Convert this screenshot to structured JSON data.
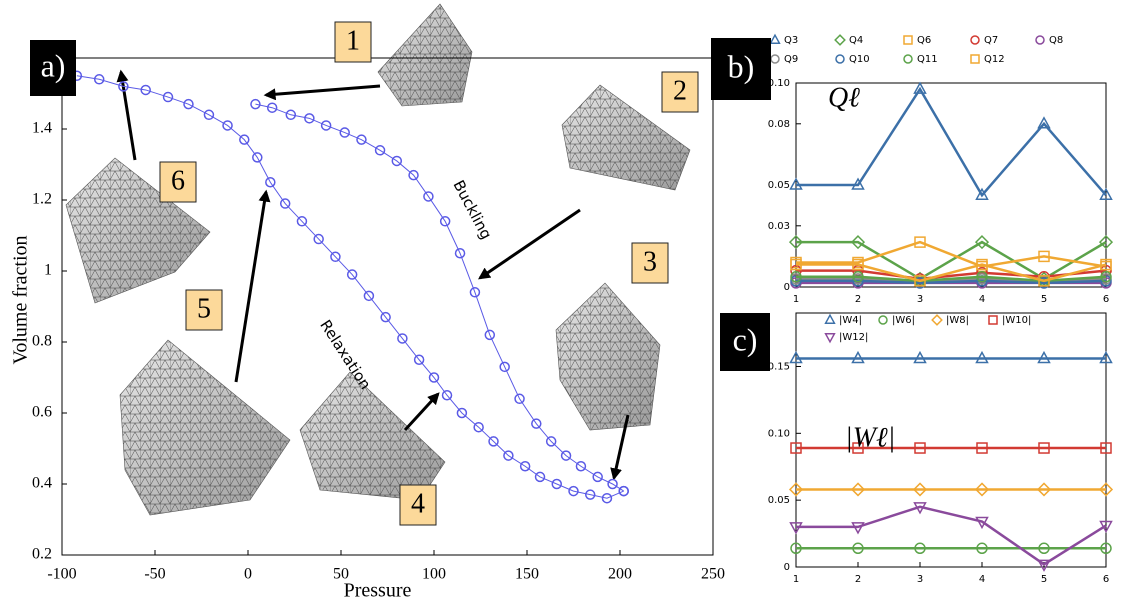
{
  "chart_data": [
    {
      "type": "line",
      "panel_label": "a)",
      "x_label": "Pressure",
      "y_label": "Volume fraction",
      "xlim": [
        -100,
        250
      ],
      "xticks": [
        -100,
        -50,
        0,
        50,
        100,
        150,
        200,
        250
      ],
      "ylim": [
        0.2,
        1.6
      ],
      "yticks": [
        0.2,
        0.4,
        0.6,
        0.8,
        1,
        1.2,
        1.4
      ],
      "annotations": [
        "1",
        "2",
        "3",
        "4",
        "5",
        "6",
        "Buckling",
        "Relaxation"
      ],
      "series": [
        {
          "color": "#5a5ae6",
          "marker": "circle",
          "x": [
            4,
            13,
            23,
            33,
            42,
            52,
            61,
            71,
            80,
            89,
            97,
            106,
            114,
            122,
            130,
            138,
            146,
            155,
            163,
            171,
            179,
            188,
            196,
            202
          ],
          "values": [
            1.47,
            1.46,
            1.44,
            1.43,
            1.41,
            1.39,
            1.37,
            1.34,
            1.31,
            1.27,
            1.21,
            1.14,
            1.05,
            0.94,
            0.82,
            0.73,
            0.64,
            0.57,
            0.52,
            0.48,
            0.45,
            0.42,
            0.4,
            0.38
          ]
        },
        {
          "color": "#5a5ae6",
          "marker": "circle",
          "x": [
            -92,
            -80,
            -67,
            -55,
            -43,
            -32,
            -21,
            -11,
            -2,
            5,
            12,
            20,
            29,
            38,
            47,
            56,
            65,
            74,
            83,
            92,
            100,
            107,
            115,
            124,
            132,
            140,
            149,
            157,
            166,
            175,
            184,
            193,
            202
          ],
          "values": [
            1.55,
            1.54,
            1.52,
            1.51,
            1.49,
            1.47,
            1.44,
            1.41,
            1.37,
            1.32,
            1.25,
            1.19,
            1.14,
            1.09,
            1.04,
            0.99,
            0.93,
            0.87,
            0.81,
            0.75,
            0.7,
            0.65,
            0.6,
            0.56,
            0.52,
            0.48,
            0.45,
            0.42,
            0.4,
            0.38,
            0.37,
            0.36,
            0.38
          ]
        }
      ]
    },
    {
      "type": "line",
      "panel_label": "b)",
      "y_label": "Qℓ",
      "x": [
        1,
        2,
        3,
        4,
        5,
        6
      ],
      "xlim": [
        1,
        6
      ],
      "xticks": [
        1,
        2,
        3,
        4,
        5,
        6
      ],
      "ylim": [
        0,
        0.1
      ],
      "yticks": [
        0,
        0.03,
        0.05,
        0.08,
        {
          "value": 0.1,
          "label": "0.10"
        }
      ],
      "series": [
        {
          "name": "Q3",
          "color": "#3c70a8",
          "marker": "triangle",
          "values": [
            0.05,
            0.05,
            0.097,
            0.045,
            0.08,
            0.045
          ]
        },
        {
          "name": "Q4",
          "color": "#5ca34a",
          "marker": "diamond",
          "values": [
            0.022,
            0.022,
            0.004,
            0.022,
            0.004,
            0.022
          ]
        },
        {
          "name": "Q6",
          "color": "#f0a832",
          "marker": "square",
          "values": [
            0.012,
            0.012,
            0.022,
            0.01,
            0.015,
            0.01
          ]
        },
        {
          "name": "Q7",
          "color": "#d23a32",
          "marker": "circle",
          "values": [
            0.008,
            0.008,
            0.004,
            0.007,
            0.005,
            0.008
          ]
        },
        {
          "name": "Q8",
          "color": "#8a4a9c",
          "marker": "circle",
          "values": [
            0.002,
            0.002,
            0.002,
            0.002,
            0.002,
            0.002
          ]
        },
        {
          "name": "Q9",
          "color": "#8c8c8c",
          "marker": "circle",
          "values": [
            0.004,
            0.004,
            0.003,
            0.004,
            0.003,
            0.004
          ]
        },
        {
          "name": "Q10",
          "color": "#3c70a8",
          "marker": "circle",
          "values": [
            0.003,
            0.003,
            0.002,
            0.003,
            0.002,
            0.003
          ]
        },
        {
          "name": "Q11",
          "color": "#5ca34a",
          "marker": "circle",
          "values": [
            0.005,
            0.005,
            0.003,
            0.005,
            0.003,
            0.005
          ]
        },
        {
          "name": "Q12",
          "color": "#f0a832",
          "marker": "square",
          "values": [
            0.011,
            0.011,
            0.003,
            0.011,
            0.003,
            0.011
          ]
        }
      ]
    },
    {
      "type": "line",
      "panel_label": "c)",
      "y_label": "|Wℓ|",
      "x": [
        1,
        2,
        3,
        4,
        5,
        6
      ],
      "xlim": [
        1,
        6
      ],
      "xticks": [
        1,
        2,
        3,
        4,
        5,
        6
      ],
      "ylim": [
        0,
        0.19
      ],
      "yticks": [
        0,
        0.05,
        {
          "value": 0.1,
          "label": "0.10"
        },
        0.15
      ],
      "series": [
        {
          "name": "|W4|",
          "color": "#3c70a8",
          "marker": "triangle",
          "values": [
            0.156,
            0.156,
            0.156,
            0.156,
            0.156,
            0.156
          ]
        },
        {
          "name": "|W6|",
          "color": "#5ca34a",
          "marker": "circle",
          "values": [
            0.014,
            0.014,
            0.014,
            0.014,
            0.014,
            0.014
          ]
        },
        {
          "name": "|W8|",
          "color": "#f0a832",
          "marker": "diamond",
          "values": [
            0.058,
            0.058,
            0.058,
            0.058,
            0.058,
            0.058
          ]
        },
        {
          "name": "|W10|",
          "color": "#d23a32",
          "marker": "square",
          "values": [
            0.089,
            0.089,
            0.089,
            0.089,
            0.089,
            0.089
          ]
        },
        {
          "name": "|W12|",
          "color": "#8a4a9c",
          "marker": "triangle-down",
          "values": [
            0.03,
            0.03,
            0.045,
            0.034,
            0.002,
            0.031
          ]
        }
      ]
    }
  ]
}
